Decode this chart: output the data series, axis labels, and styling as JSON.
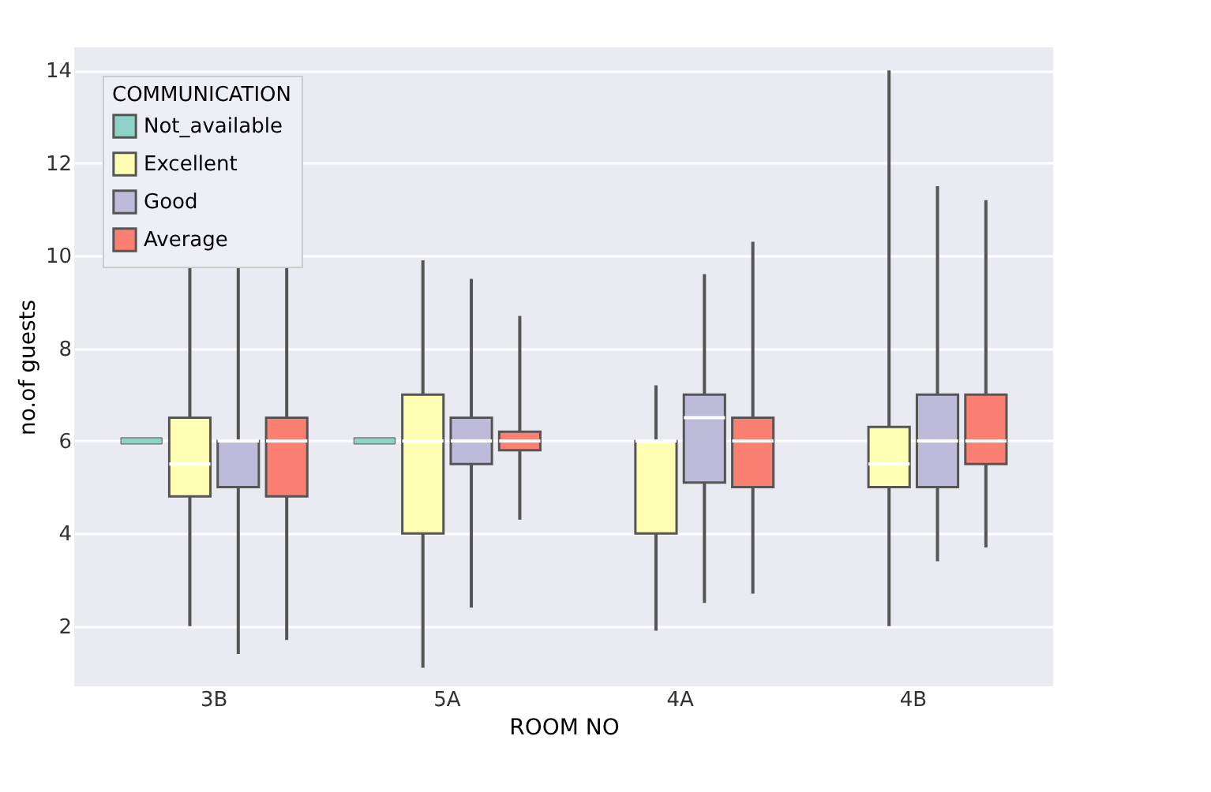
{
  "chart_data": {
    "type": "box",
    "xlabel": "ROOM NO",
    "ylabel": "no.of guests",
    "legend_title": "COMMUNICATION",
    "categories": [
      "3B",
      "5A",
      "4A",
      "4B"
    ],
    "series": [
      {
        "name": "Not_available",
        "color": "#8dd3c7",
        "boxes": [
          {
            "low": 6,
            "q1": 6,
            "median": 6,
            "q3": 6,
            "high": 6
          },
          {
            "low": 6,
            "q1": 6,
            "median": 6,
            "q3": 6,
            "high": 6
          },
          null,
          null
        ]
      },
      {
        "name": "Excellent",
        "color": "#ffffb3",
        "boxes": [
          {
            "low": 2,
            "q1": 4.8,
            "median": 5.5,
            "q3": 6.5,
            "high": 10
          },
          {
            "low": 1.1,
            "q1": 4,
            "median": 6,
            "q3": 7,
            "high": 9.9
          },
          {
            "low": 1.9,
            "q1": 4,
            "median": 6,
            "q3": 6,
            "high": 7.2
          },
          {
            "low": 2,
            "q1": 5,
            "median": 5.5,
            "q3": 6.3,
            "high": 14
          }
        ]
      },
      {
        "name": "Good",
        "color": "#bebada",
        "boxes": [
          {
            "low": 1.4,
            "q1": 5,
            "median": 6,
            "q3": 6,
            "high": 10.5
          },
          {
            "low": 2.4,
            "q1": 5.5,
            "median": 6,
            "q3": 6.5,
            "high": 9.5
          },
          {
            "low": 2.5,
            "q1": 5.1,
            "median": 6.5,
            "q3": 7,
            "high": 9.6
          },
          {
            "low": 3.4,
            "q1": 5,
            "median": 6,
            "q3": 7,
            "high": 11.5
          }
        ]
      },
      {
        "name": "Average",
        "color": "#fb8072",
        "boxes": [
          {
            "low": 1.7,
            "q1": 4.8,
            "median": 6,
            "q3": 6.5,
            "high": 10.5
          },
          {
            "low": 4.3,
            "q1": 5.8,
            "median": 6,
            "q3": 6.2,
            "high": 8.7
          },
          {
            "low": 2.7,
            "q1": 5,
            "median": 6,
            "q3": 6.5,
            "high": 10.3
          },
          {
            "low": 3.7,
            "q1": 5.5,
            "median": 6,
            "q3": 7,
            "high": 11.2
          }
        ]
      }
    ],
    "ylim": [
      0.7,
      14.5
    ],
    "yticks": [
      2,
      4,
      6,
      8,
      10,
      12,
      14
    ],
    "grid": "y",
    "legend": "top left"
  }
}
